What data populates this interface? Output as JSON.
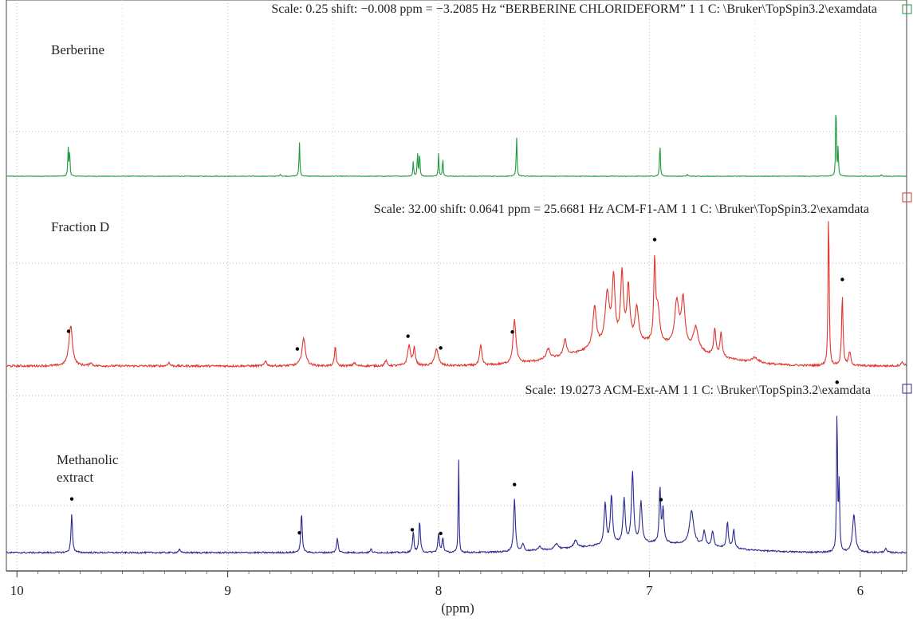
{
  "chart_data": {
    "type": "line",
    "title": "",
    "xlabel": "(ppm)",
    "ylabel": "",
    "x_range": [
      10.05,
      5.78
    ],
    "x_reversed": true,
    "x_ticks": [
      10,
      9,
      8,
      7,
      6
    ],
    "grid": "dotted",
    "series": [
      {
        "name": "Berberine",
        "color": "#1f9a3e",
        "scale_label": "Scale: 0.25 shift: −0.008 ppm = −3.2085 Hz “BERBERINE CHLORIDEFORM” 1 1 C: \\Bruker\\TopSpin3.2\\examdata",
        "marker_color": "#1f9a3e",
        "y_range": [
          0,
          1
        ],
        "noise": 0.003,
        "peaks": [
          {
            "x": 9.757,
            "h": 0.3,
            "w": 0.002
          },
          {
            "x": 9.75,
            "h": 0.28,
            "w": 0.002
          },
          {
            "x": 8.66,
            "h": 0.36,
            "w": 0.0022
          },
          {
            "x": 8.12,
            "h": 0.16,
            "w": 0.002
          },
          {
            "x": 8.1,
            "h": 0.26,
            "w": 0.002
          },
          {
            "x": 8.09,
            "h": 0.26,
            "w": 0.002
          },
          {
            "x": 8.0,
            "h": 0.24,
            "w": 0.002
          },
          {
            "x": 7.98,
            "h": 0.2,
            "w": 0.002
          },
          {
            "x": 7.63,
            "h": 0.42,
            "w": 0.0022
          },
          {
            "x": 6.95,
            "h": 0.36,
            "w": 0.0022
          },
          {
            "x": 6.115,
            "h": 0.92,
            "w": 0.0018
          },
          {
            "x": 6.105,
            "h": 0.3,
            "w": 0.002
          },
          {
            "x": 8.75,
            "h": 0.02,
            "w": 0.003
          },
          {
            "x": 6.82,
            "h": 0.02,
            "w": 0.003
          },
          {
            "x": 5.9,
            "h": 0.015,
            "w": 0.003
          }
        ],
        "dot_markers": []
      },
      {
        "name": "Fraction D",
        "color": "#e0352b",
        "scale_label": "Scale: 32.00 shift: 0.0641 ppm = 25.6681 Hz ACM-F1-AM 1 1 C: \\Bruker\\TopSpin3.2\\examdata",
        "marker_color": "#e0352b",
        "y_range": [
          0,
          1
        ],
        "noise": 0.006,
        "peaks": [
          {
            "x": 9.745,
            "h": 0.24,
            "w": 0.01
          },
          {
            "x": 9.65,
            "h": 0.02,
            "w": 0.006
          },
          {
            "x": 9.28,
            "h": 0.02,
            "w": 0.006
          },
          {
            "x": 8.82,
            "h": 0.03,
            "w": 0.006
          },
          {
            "x": 8.64,
            "h": 0.16,
            "w": 0.01
          },
          {
            "x": 8.49,
            "h": 0.12,
            "w": 0.004
          },
          {
            "x": 8.4,
            "h": 0.02,
            "w": 0.006
          },
          {
            "x": 8.25,
            "h": 0.03,
            "w": 0.006
          },
          {
            "x": 8.14,
            "h": 0.12,
            "w": 0.008
          },
          {
            "x": 8.115,
            "h": 0.1,
            "w": 0.006
          },
          {
            "x": 8.01,
            "h": 0.1,
            "w": 0.01
          },
          {
            "x": 7.8,
            "h": 0.12,
            "w": 0.006
          },
          {
            "x": 7.64,
            "h": 0.26,
            "w": 0.008
          },
          {
            "x": 7.48,
            "h": 0.06,
            "w": 0.01
          },
          {
            "x": 7.4,
            "h": 0.1,
            "w": 0.008
          },
          {
            "x": 7.26,
            "h": 0.24,
            "w": 0.01
          },
          {
            "x": 7.2,
            "h": 0.3,
            "w": 0.012
          },
          {
            "x": 7.17,
            "h": 0.38,
            "w": 0.008
          },
          {
            "x": 7.13,
            "h": 0.4,
            "w": 0.008
          },
          {
            "x": 7.1,
            "h": 0.32,
            "w": 0.008
          },
          {
            "x": 7.06,
            "h": 0.2,
            "w": 0.01
          },
          {
            "x": 6.975,
            "h": 0.46,
            "w": 0.005
          },
          {
            "x": 6.96,
            "h": 0.2,
            "w": 0.01
          },
          {
            "x": 6.87,
            "h": 0.26,
            "w": 0.012
          },
          {
            "x": 6.84,
            "h": 0.28,
            "w": 0.01
          },
          {
            "x": 6.78,
            "h": 0.14,
            "w": 0.014
          },
          {
            "x": 6.69,
            "h": 0.16,
            "w": 0.006
          },
          {
            "x": 6.66,
            "h": 0.14,
            "w": 0.006
          },
          {
            "x": 6.5,
            "h": 0.03,
            "w": 0.02
          },
          {
            "x": 6.15,
            "h": 0.94,
            "w": 0.003
          },
          {
            "x": 6.085,
            "h": 0.42,
            "w": 0.004
          },
          {
            "x": 6.05,
            "h": 0.08,
            "w": 0.006
          },
          {
            "x": 5.8,
            "h": 0.02,
            "w": 0.01
          }
        ],
        "hump": [
          {
            "x": 7.05,
            "h": 0.13,
            "w": 0.28
          }
        ],
        "dot_markers": [
          9.755,
          8.67,
          8.145,
          7.99,
          7.65,
          6.975,
          6.085
        ]
      },
      {
        "name": "Methanolic extract",
        "color": "#2b2a90",
        "scale_label": "Scale: 19.0273 ACM-Ext-AM 1 1 C: \\Bruker\\TopSpin3.2\\examdata",
        "marker_color": "#2b2a90",
        "y_range": [
          0,
          1
        ],
        "noise": 0.004,
        "peaks": [
          {
            "x": 9.74,
            "h": 0.21,
            "w": 0.004
          },
          {
            "x": 9.23,
            "h": 0.02,
            "w": 0.004
          },
          {
            "x": 8.65,
            "h": 0.21,
            "w": 0.004
          },
          {
            "x": 8.48,
            "h": 0.08,
            "w": 0.004
          },
          {
            "x": 8.32,
            "h": 0.02,
            "w": 0.004
          },
          {
            "x": 8.12,
            "h": 0.11,
            "w": 0.004
          },
          {
            "x": 8.09,
            "h": 0.17,
            "w": 0.004
          },
          {
            "x": 8.0,
            "h": 0.1,
            "w": 0.004
          },
          {
            "x": 7.98,
            "h": 0.08,
            "w": 0.004
          },
          {
            "x": 7.905,
            "h": 0.55,
            "w": 0.002
          },
          {
            "x": 7.64,
            "h": 0.28,
            "w": 0.005
          },
          {
            "x": 7.6,
            "h": 0.04,
            "w": 0.006
          },
          {
            "x": 7.52,
            "h": 0.02,
            "w": 0.01
          },
          {
            "x": 7.44,
            "h": 0.03,
            "w": 0.01
          },
          {
            "x": 7.35,
            "h": 0.04,
            "w": 0.01
          },
          {
            "x": 7.21,
            "h": 0.22,
            "w": 0.006
          },
          {
            "x": 7.18,
            "h": 0.26,
            "w": 0.006
          },
          {
            "x": 7.12,
            "h": 0.24,
            "w": 0.006
          },
          {
            "x": 7.08,
            "h": 0.38,
            "w": 0.006
          },
          {
            "x": 7.04,
            "h": 0.22,
            "w": 0.006
          },
          {
            "x": 6.95,
            "h": 0.3,
            "w": 0.004
          },
          {
            "x": 6.935,
            "h": 0.18,
            "w": 0.005
          },
          {
            "x": 6.8,
            "h": 0.18,
            "w": 0.012
          },
          {
            "x": 6.74,
            "h": 0.08,
            "w": 0.006
          },
          {
            "x": 6.7,
            "h": 0.08,
            "w": 0.006
          },
          {
            "x": 6.63,
            "h": 0.14,
            "w": 0.005
          },
          {
            "x": 6.6,
            "h": 0.1,
            "w": 0.005
          },
          {
            "x": 6.11,
            "h": 0.8,
            "w": 0.0025
          },
          {
            "x": 6.1,
            "h": 0.36,
            "w": 0.003
          },
          {
            "x": 6.03,
            "h": 0.2,
            "w": 0.008
          },
          {
            "x": 5.88,
            "h": 0.02,
            "w": 0.006
          }
        ],
        "hump": [
          {
            "x": 7.0,
            "h": 0.05,
            "w": 0.3
          }
        ],
        "dot_markers": [
          9.74,
          8.66,
          8.125,
          7.99,
          7.64,
          6.945,
          6.11
        ]
      }
    ]
  }
}
